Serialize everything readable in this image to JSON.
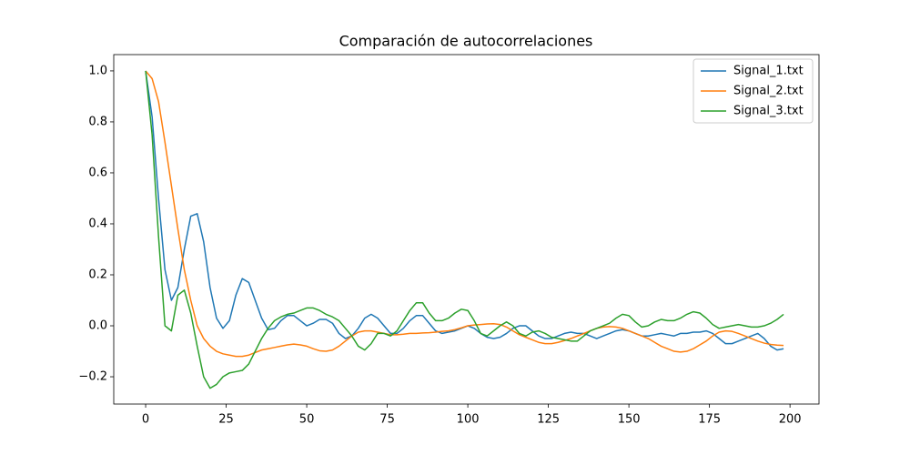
{
  "chart_data": {
    "type": "line",
    "title": "Comparación de autocorrelaciones",
    "x": [
      0,
      2,
      4,
      6,
      8,
      10,
      12,
      14,
      16,
      18,
      20,
      22,
      24,
      26,
      28,
      30,
      32,
      34,
      36,
      38,
      40,
      42,
      44,
      46,
      48,
      50,
      52,
      54,
      56,
      58,
      60,
      62,
      64,
      66,
      68,
      70,
      72,
      74,
      76,
      78,
      80,
      82,
      84,
      86,
      88,
      90,
      92,
      94,
      96,
      98,
      100,
      102,
      104,
      106,
      108,
      110,
      112,
      114,
      116,
      118,
      120,
      122,
      124,
      126,
      128,
      130,
      132,
      134,
      136,
      138,
      140,
      142,
      144,
      146,
      148,
      150,
      152,
      154,
      156,
      158,
      160,
      162,
      164,
      166,
      168,
      170,
      172,
      174,
      176,
      178,
      180,
      182,
      184,
      186,
      188,
      190,
      192,
      194,
      196,
      198
    ],
    "series": [
      {
        "name": "Signal_1.txt",
        "color": "#1f77b4",
        "values": [
          1.0,
          0.82,
          0.5,
          0.22,
          0.1,
          0.15,
          0.3,
          0.43,
          0.44,
          0.33,
          0.15,
          0.03,
          -0.01,
          0.02,
          0.12,
          0.185,
          0.17,
          0.1,
          0.03,
          -0.015,
          -0.01,
          0.02,
          0.04,
          0.04,
          0.02,
          0.0,
          0.01,
          0.025,
          0.025,
          0.01,
          -0.03,
          -0.05,
          -0.04,
          -0.01,
          0.03,
          0.045,
          0.03,
          0.0,
          -0.03,
          -0.03,
          -0.01,
          0.02,
          0.04,
          0.04,
          0.01,
          -0.02,
          -0.03,
          -0.025,
          -0.02,
          -0.01,
          0.0,
          -0.01,
          -0.03,
          -0.045,
          -0.05,
          -0.045,
          -0.03,
          -0.01,
          0.0,
          0.0,
          -0.02,
          -0.04,
          -0.05,
          -0.05,
          -0.04,
          -0.03,
          -0.025,
          -0.03,
          -0.03,
          -0.04,
          -0.05,
          -0.04,
          -0.03,
          -0.02,
          -0.015,
          -0.02,
          -0.03,
          -0.04,
          -0.04,
          -0.035,
          -0.03,
          -0.035,
          -0.04,
          -0.03,
          -0.03,
          -0.025,
          -0.025,
          -0.02,
          -0.03,
          -0.05,
          -0.07,
          -0.07,
          -0.06,
          -0.05,
          -0.04,
          -0.03,
          -0.05,
          -0.08,
          -0.095,
          -0.09
        ]
      },
      {
        "name": "Signal_2.txt",
        "color": "#ff7f0e",
        "values": [
          1.0,
          0.97,
          0.88,
          0.72,
          0.55,
          0.38,
          0.22,
          0.1,
          0.0,
          -0.05,
          -0.08,
          -0.1,
          -0.11,
          -0.115,
          -0.12,
          -0.12,
          -0.115,
          -0.105,
          -0.095,
          -0.09,
          -0.085,
          -0.08,
          -0.075,
          -0.072,
          -0.075,
          -0.08,
          -0.09,
          -0.098,
          -0.1,
          -0.095,
          -0.08,
          -0.06,
          -0.04,
          -0.025,
          -0.02,
          -0.02,
          -0.025,
          -0.03,
          -0.035,
          -0.035,
          -0.033,
          -0.03,
          -0.03,
          -0.028,
          -0.027,
          -0.025,
          -0.022,
          -0.02,
          -0.015,
          -0.008,
          0.0,
          0.003,
          0.005,
          0.007,
          0.008,
          0.005,
          -0.005,
          -0.02,
          -0.035,
          -0.045,
          -0.055,
          -0.065,
          -0.07,
          -0.07,
          -0.065,
          -0.058,
          -0.05,
          -0.04,
          -0.03,
          -0.02,
          -0.01,
          -0.005,
          -0.003,
          -0.005,
          -0.01,
          -0.02,
          -0.03,
          -0.04,
          -0.05,
          -0.065,
          -0.08,
          -0.09,
          -0.1,
          -0.103,
          -0.1,
          -0.09,
          -0.075,
          -0.06,
          -0.04,
          -0.025,
          -0.02,
          -0.022,
          -0.03,
          -0.04,
          -0.05,
          -0.06,
          -0.068,
          -0.073,
          -0.076,
          -0.077
        ]
      },
      {
        "name": "Signal_3.txt",
        "color": "#2ca02c",
        "values": [
          1.0,
          0.75,
          0.35,
          0.0,
          -0.02,
          0.12,
          0.14,
          0.05,
          -0.08,
          -0.2,
          -0.245,
          -0.23,
          -0.2,
          -0.185,
          -0.18,
          -0.175,
          -0.15,
          -0.1,
          -0.05,
          -0.01,
          0.02,
          0.035,
          0.045,
          0.05,
          0.06,
          0.07,
          0.07,
          0.06,
          0.045,
          0.035,
          0.02,
          -0.01,
          -0.04,
          -0.08,
          -0.095,
          -0.07,
          -0.03,
          -0.03,
          -0.04,
          -0.02,
          0.02,
          0.06,
          0.09,
          0.09,
          0.05,
          0.02,
          0.02,
          0.03,
          0.05,
          0.065,
          0.06,
          0.02,
          -0.03,
          -0.04,
          -0.02,
          0.0,
          0.015,
          0.0,
          -0.03,
          -0.04,
          -0.025,
          -0.02,
          -0.03,
          -0.045,
          -0.05,
          -0.055,
          -0.06,
          -0.06,
          -0.04,
          -0.02,
          -0.01,
          0.0,
          0.01,
          0.03,
          0.045,
          0.04,
          0.015,
          -0.005,
          0.0,
          0.015,
          0.025,
          0.02,
          0.02,
          0.03,
          0.045,
          0.055,
          0.05,
          0.03,
          0.005,
          -0.01,
          -0.005,
          0.0,
          0.005,
          0.0,
          -0.005,
          -0.005,
          0.0,
          0.01,
          0.025,
          0.045
        ]
      }
    ],
    "xlim": [
      -9.9,
      209
    ],
    "ylim": [
      -0.307,
      1.064
    ],
    "xticks": [
      0,
      25,
      50,
      75,
      100,
      125,
      150,
      175,
      200
    ],
    "yticks": [
      {
        "value": -0.2,
        "label": "−0.2"
      },
      {
        "value": 0,
        "label": "0.0"
      },
      {
        "value": 0.2,
        "label": "0.2"
      },
      {
        "value": 0.4,
        "label": "0.4"
      },
      {
        "value": 0.6,
        "label": "0.6"
      },
      {
        "value": 0.8,
        "label": "0.8"
      },
      {
        "value": 1.0,
        "label": "1.0"
      }
    ],
    "legend": "upper right"
  }
}
